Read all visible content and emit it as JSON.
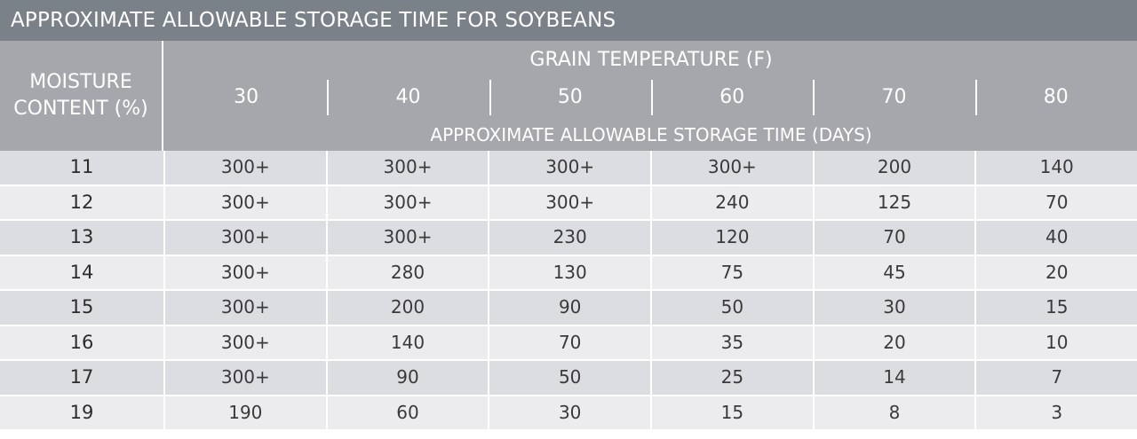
{
  "title": "APPROXIMATE ALLOWABLE STORAGE TIME FOR SOYBEANS",
  "header": {
    "moisture_line1": "MOISTURE",
    "moisture_line2": "CONTENT (%)",
    "grain_temperature": "GRAIN TEMPERATURE (F)",
    "temperatures": [
      "30",
      "40",
      "50",
      "60",
      "70",
      "80"
    ],
    "storage_time": "APPROXIMATE ALLOWABLE STORAGE TIME (DAYS)"
  },
  "rows": [
    {
      "moisture": "11",
      "values": [
        "300+",
        "300+",
        "300+",
        "300+",
        "200",
        "140"
      ]
    },
    {
      "moisture": "12",
      "values": [
        "300+",
        "300+",
        "300+",
        "240",
        "125",
        "70"
      ]
    },
    {
      "moisture": "13",
      "values": [
        "300+",
        "300+",
        "230",
        "120",
        "70",
        "40"
      ]
    },
    {
      "moisture": "14",
      "values": [
        "300+",
        "280",
        "130",
        "75",
        "45",
        "20"
      ]
    },
    {
      "moisture": "15",
      "values": [
        "300+",
        "200",
        "90",
        "50",
        "30",
        "15"
      ]
    },
    {
      "moisture": "16",
      "values": [
        "300+",
        "140",
        "70",
        "35",
        "20",
        "10"
      ]
    },
    {
      "moisture": "17",
      "values": [
        "300+",
        "90",
        "50",
        "25",
        "14",
        "7"
      ]
    },
    {
      "moisture": "19",
      "values": [
        "190",
        "60",
        "30",
        "15",
        "8",
        "3"
      ]
    }
  ]
}
